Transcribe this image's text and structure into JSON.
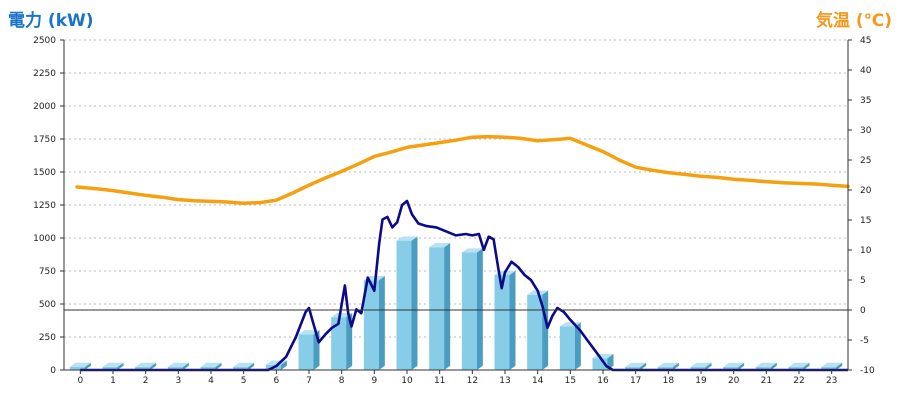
{
  "colors": {
    "power_title": "#1a73c9",
    "temp_title": "#f39a1e",
    "bar_front": "#87cde8",
    "bar_side": "#4a9cc0",
    "bar_top": "#b8e2f2",
    "actual_line": "#0a0a8a",
    "temp_line": "#f5a00f",
    "grid": "#bbbbbb",
    "zero_line": "#333333"
  },
  "chart_data": {
    "type": "bar+line",
    "left_axis": {
      "label": "電力 (kW)",
      "min": 0,
      "max": 2500,
      "ticks": [
        0,
        250,
        500,
        750,
        1000,
        1250,
        1500,
        1750,
        2000,
        2250,
        2500
      ]
    },
    "right_axis": {
      "label": "気温 (℃)",
      "min": -10,
      "max": 45,
      "ticks": [
        -10,
        -5,
        0,
        5,
        10,
        15,
        20,
        25,
        30,
        35,
        40,
        45
      ]
    },
    "categories": [
      "0",
      "1",
      "2",
      "3",
      "4",
      "5",
      "6",
      "7",
      "8",
      "9",
      "10",
      "11",
      "12",
      "13",
      "14",
      "15",
      "16",
      "17",
      "18",
      "19",
      "20",
      "21",
      "22",
      "23"
    ],
    "bar_values": [
      0,
      0,
      0,
      0,
      0,
      0,
      40,
      270,
      400,
      680,
      980,
      930,
      890,
      720,
      570,
      330,
      90,
      0,
      0,
      0,
      0,
      0,
      0,
      0
    ],
    "power_line": {
      "points": [
        [
          0,
          0
        ],
        [
          5,
          0
        ],
        [
          5.75,
          0
        ],
        [
          6,
          30
        ],
        [
          6.3,
          100
        ],
        [
          6.6,
          250
        ],
        [
          6.9,
          440
        ],
        [
          7.0,
          470
        ],
        [
          7.1,
          380
        ],
        [
          7.3,
          210
        ],
        [
          7.5,
          270
        ],
        [
          7.7,
          320
        ],
        [
          7.9,
          350
        ],
        [
          8.0,
          500
        ],
        [
          8.1,
          640
        ],
        [
          8.2,
          430
        ],
        [
          8.3,
          330
        ],
        [
          8.45,
          460
        ],
        [
          8.6,
          430
        ],
        [
          8.8,
          700
        ],
        [
          9.0,
          600
        ],
        [
          9.15,
          960
        ],
        [
          9.25,
          1140
        ],
        [
          9.4,
          1160
        ],
        [
          9.55,
          1080
        ],
        [
          9.7,
          1120
        ],
        [
          9.85,
          1250
        ],
        [
          10.0,
          1280
        ],
        [
          10.15,
          1180
        ],
        [
          10.35,
          1110
        ],
        [
          10.6,
          1090
        ],
        [
          10.9,
          1080
        ],
        [
          11.2,
          1050
        ],
        [
          11.5,
          1020
        ],
        [
          11.8,
          1030
        ],
        [
          12.0,
          1020
        ],
        [
          12.2,
          1030
        ],
        [
          12.35,
          910
        ],
        [
          12.5,
          1010
        ],
        [
          12.65,
          990
        ],
        [
          12.8,
          760
        ],
        [
          12.9,
          620
        ],
        [
          13.0,
          740
        ],
        [
          13.2,
          820
        ],
        [
          13.4,
          780
        ],
        [
          13.6,
          720
        ],
        [
          13.8,
          680
        ],
        [
          14.0,
          600
        ],
        [
          14.15,
          480
        ],
        [
          14.3,
          320
        ],
        [
          14.45,
          410
        ],
        [
          14.6,
          470
        ],
        [
          14.8,
          440
        ],
        [
          15.0,
          380
        ],
        [
          15.3,
          300
        ],
        [
          15.6,
          200
        ],
        [
          15.9,
          100
        ],
        [
          16.1,
          30
        ],
        [
          16.3,
          0
        ],
        [
          23.5,
          0
        ]
      ]
    },
    "temperature_line": {
      "x": [
        -0.1,
        0.5,
        1,
        1.5,
        2,
        2.5,
        3,
        3.5,
        4,
        4.5,
        5,
        5.5,
        6,
        6.5,
        7,
        7.5,
        8,
        8.5,
        9,
        9.5,
        10,
        10.5,
        11,
        11.5,
        12,
        12.5,
        13,
        13.5,
        14,
        14.5,
        15,
        15.5,
        16,
        16.5,
        17,
        17.5,
        18,
        18.5,
        19,
        19.5,
        20,
        20.5,
        21,
        21.5,
        22,
        22.5,
        23,
        23.5
      ],
      "y": [
        20.5,
        20.2,
        19.9,
        19.5,
        19.1,
        18.8,
        18.4,
        18.2,
        18.1,
        18.0,
        17.8,
        17.9,
        18.3,
        19.5,
        20.8,
        22.0,
        23.1,
        24.3,
        25.6,
        26.3,
        27.1,
        27.5,
        27.9,
        28.3,
        28.8,
        28.9,
        28.8,
        28.6,
        28.2,
        28.4,
        28.6,
        27.5,
        26.4,
        25.0,
        23.8,
        23.3,
        22.9,
        22.6,
        22.3,
        22.1,
        21.8,
        21.6,
        21.4,
        21.2,
        21.1,
        21.0,
        20.8,
        20.6
      ]
    }
  }
}
